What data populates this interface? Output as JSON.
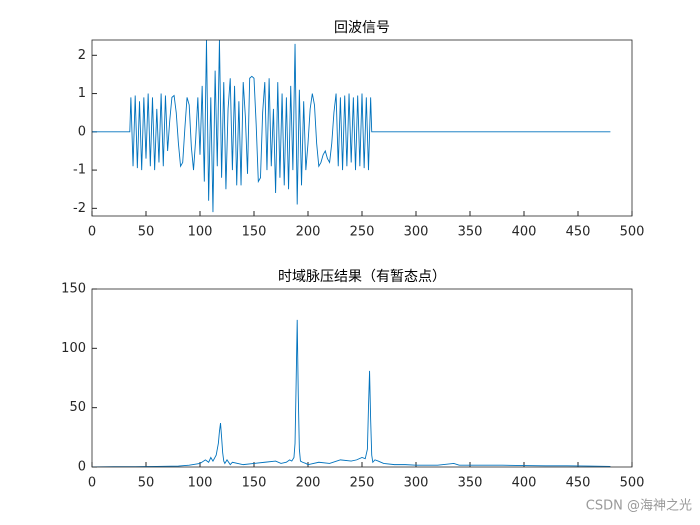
{
  "chart_data": [
    {
      "type": "line",
      "title": "回波信号",
      "color": "#0072BD",
      "xlim": [
        0,
        500
      ],
      "xticks": [
        0,
        50,
        100,
        150,
        200,
        250,
        300,
        350,
        400,
        450,
        500
      ],
      "ylim": [
        -2.2,
        2.4
      ],
      "yticks": [
        -2,
        -1,
        0,
        1,
        2
      ],
      "x": [
        0,
        35,
        36,
        38,
        40,
        42,
        44,
        46,
        48,
        50,
        52,
        54,
        56,
        58,
        60,
        62,
        64,
        66,
        68,
        70,
        72,
        74,
        76,
        78,
        80,
        82,
        84,
        86,
        88,
        90,
        92,
        94,
        96,
        98,
        100,
        102,
        104,
        106,
        108,
        110,
        112,
        114,
        116,
        118,
        120,
        122,
        124,
        126,
        128,
        130,
        132,
        134,
        136,
        138,
        140,
        142,
        144,
        146,
        148,
        150,
        152,
        154,
        156,
        158,
        160,
        162,
        164,
        166,
        168,
        170,
        172,
        174,
        176,
        178,
        180,
        182,
        184,
        186,
        188,
        190,
        192,
        194,
        196,
        198,
        200,
        202,
        204,
        206,
        208,
        210,
        212,
        214,
        216,
        218,
        220,
        222,
        224,
        226,
        228,
        230,
        232,
        234,
        236,
        238,
        240,
        242,
        244,
        246,
        248,
        250,
        252,
        254,
        256,
        258,
        259,
        480
      ],
      "values": [
        0,
        0,
        0.9,
        -0.9,
        0.95,
        -0.95,
        0.8,
        -1,
        0.9,
        -0.7,
        1,
        -0.9,
        0.9,
        -1,
        0.6,
        -0.8,
        1,
        -0.9,
        0.95,
        -0.5,
        0.3,
        0.9,
        0.95,
        0.5,
        -0.3,
        -0.9,
        -0.8,
        0.1,
        0.9,
        0.7,
        -0.4,
        -1,
        -0.2,
        0.9,
        -0.6,
        1.2,
        -1.3,
        2.4,
        -1.8,
        0.9,
        -2.1,
        1.6,
        -0.9,
        2.4,
        -1.2,
        1.3,
        -1.5,
        0.6,
        1.4,
        -1.0,
        1.2,
        -1.4,
        0.8,
        -1.4,
        1.3,
        0.4,
        -1.1,
        1.4,
        1.45,
        1.4,
        0.2,
        -1.3,
        -1.2,
        0.5,
        1.3,
        -1.0,
        1.4,
        -0.9,
        0.6,
        -1.6,
        1.3,
        -1.2,
        1.0,
        -1.4,
        0.9,
        -1.5,
        1.2,
        -1.0,
        2.3,
        -1.9,
        1.1,
        -1.4,
        0.8,
        -1.0,
        -0.3,
        0.6,
        1.0,
        0.7,
        -0.3,
        -0.9,
        -0.8,
        -0.6,
        -0.5,
        -0.7,
        -0.8,
        -0.3,
        0.5,
        1.0,
        -0.9,
        0.9,
        -1,
        0.95,
        -0.9,
        1,
        -0.8,
        0.9,
        -1,
        0.95,
        -0.9,
        1,
        -0.95,
        0.9,
        -1,
        0.9,
        0,
        0
      ]
    },
    {
      "type": "line",
      "title": "时域脉压结果（有暂态点）",
      "color": "#0072BD",
      "xlim": [
        0,
        500
      ],
      "xticks": [
        0,
        50,
        100,
        150,
        200,
        250,
        300,
        350,
        400,
        450,
        500
      ],
      "ylim": [
        0,
        150
      ],
      "yticks": [
        0,
        50,
        100,
        150
      ],
      "x": [
        0,
        20,
        40,
        60,
        80,
        90,
        100,
        105,
        108,
        110,
        112,
        115,
        117,
        118,
        119,
        120,
        121,
        122,
        123,
        125,
        128,
        130,
        140,
        150,
        160,
        170,
        175,
        180,
        183,
        185,
        187,
        188,
        189,
        190,
        191,
        192,
        193,
        195,
        198,
        200,
        210,
        220,
        230,
        240,
        245,
        250,
        253,
        255,
        256,
        257,
        258,
        259,
        260,
        262,
        265,
        270,
        280,
        290,
        300,
        320,
        335,
        340,
        360,
        380,
        400,
        420,
        440,
        460,
        480
      ],
      "values": [
        0,
        0.2,
        0.3,
        0.5,
        0.8,
        1.5,
        3,
        6,
        4,
        8,
        5,
        10,
        20,
        30,
        37,
        25,
        12,
        5,
        3,
        6,
        2,
        4,
        2,
        3,
        4,
        5,
        3,
        4,
        6,
        5,
        8,
        20,
        70,
        124,
        60,
        15,
        5,
        4,
        3,
        2,
        4,
        3,
        6,
        5,
        6,
        8,
        7,
        15,
        50,
        81,
        40,
        10,
        4,
        6,
        5,
        3,
        2,
        2,
        1.5,
        1.5,
        3,
        1.5,
        1.5,
        1.5,
        1.2,
        1,
        1,
        0.8,
        0.5
      ]
    }
  ],
  "watermark": "CSDN @海神之光"
}
